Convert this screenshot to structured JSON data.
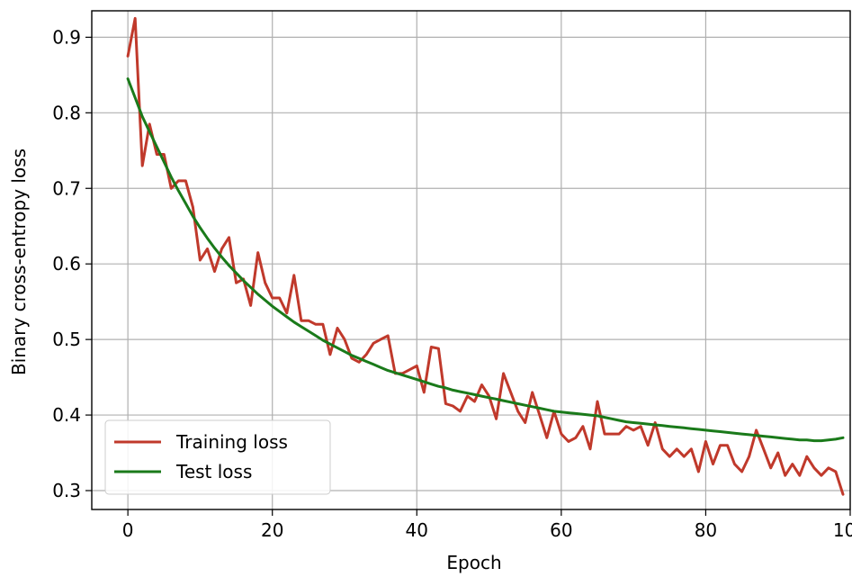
{
  "chart_data": {
    "type": "line",
    "title": "",
    "xlabel": "Epoch",
    "ylabel": "Binary cross-entropy loss",
    "xlim": [
      -5,
      100
    ],
    "ylim": [
      0.275,
      0.935
    ],
    "xticks": [
      0,
      20,
      40,
      60,
      80,
      100
    ],
    "xtick_labels": [
      "0",
      "20",
      "40",
      "60",
      "80",
      "100"
    ],
    "yticks": [
      0.3,
      0.4,
      0.5,
      0.6,
      0.7,
      0.8,
      0.9
    ],
    "ytick_labels": [
      "0.3",
      "0.4",
      "0.5",
      "0.6",
      "0.7",
      "0.8",
      "0.9"
    ],
    "grid": true,
    "legend_position": "lower-left",
    "x": [
      0,
      1,
      2,
      3,
      4,
      5,
      6,
      7,
      8,
      9,
      10,
      11,
      12,
      13,
      14,
      15,
      16,
      17,
      18,
      19,
      20,
      21,
      22,
      23,
      24,
      25,
      26,
      27,
      28,
      29,
      30,
      31,
      32,
      33,
      34,
      35,
      36,
      37,
      38,
      39,
      40,
      41,
      42,
      43,
      44,
      45,
      46,
      47,
      48,
      49,
      50,
      51,
      52,
      53,
      54,
      55,
      56,
      57,
      58,
      59,
      60,
      61,
      62,
      63,
      64,
      65,
      66,
      67,
      68,
      69,
      70,
      71,
      72,
      73,
      74,
      75,
      76,
      77,
      78,
      79,
      80,
      81,
      82,
      83,
      84,
      85,
      86,
      87,
      88,
      89,
      90,
      91,
      92,
      93,
      94,
      95,
      96,
      97,
      98,
      99
    ],
    "series": [
      {
        "name": "Training loss",
        "color": "#c0392b",
        "values": [
          0.875,
          0.925,
          0.73,
          0.785,
          0.745,
          0.745,
          0.7,
          0.71,
          0.71,
          0.675,
          0.605,
          0.62,
          0.59,
          0.62,
          0.635,
          0.575,
          0.58,
          0.545,
          0.615,
          0.575,
          0.555,
          0.555,
          0.535,
          0.585,
          0.525,
          0.525,
          0.52,
          0.52,
          0.48,
          0.515,
          0.5,
          0.475,
          0.47,
          0.48,
          0.495,
          0.5,
          0.505,
          0.455,
          0.455,
          0.46,
          0.465,
          0.43,
          0.49,
          0.488,
          0.415,
          0.412,
          0.405,
          0.425,
          0.418,
          0.44,
          0.425,
          0.395,
          0.455,
          0.43,
          0.405,
          0.39,
          0.43,
          0.4,
          0.37,
          0.405,
          0.375,
          0.365,
          0.37,
          0.385,
          0.355,
          0.418,
          0.375,
          0.375,
          0.375,
          0.385,
          0.38,
          0.385,
          0.36,
          0.39,
          0.355,
          0.345,
          0.355,
          0.345,
          0.355,
          0.325,
          0.365,
          0.335,
          0.36,
          0.36,
          0.335,
          0.325,
          0.345,
          0.38,
          0.355,
          0.33,
          0.35,
          0.32,
          0.335,
          0.32,
          0.345,
          0.33,
          0.32,
          0.33,
          0.325,
          0.295
        ]
      },
      {
        "name": "Test loss",
        "color": "#1a7a1a",
        "values": [
          0.845,
          0.82,
          0.795,
          0.775,
          0.755,
          0.735,
          0.715,
          0.697,
          0.68,
          0.663,
          0.648,
          0.634,
          0.621,
          0.609,
          0.598,
          0.588,
          0.578,
          0.569,
          0.56,
          0.552,
          0.544,
          0.537,
          0.53,
          0.523,
          0.517,
          0.511,
          0.505,
          0.499,
          0.494,
          0.489,
          0.484,
          0.479,
          0.475,
          0.471,
          0.467,
          0.463,
          0.459,
          0.456,
          0.453,
          0.45,
          0.447,
          0.444,
          0.441,
          0.438,
          0.436,
          0.433,
          0.431,
          0.429,
          0.427,
          0.425,
          0.423,
          0.421,
          0.419,
          0.417,
          0.415,
          0.413,
          0.411,
          0.409,
          0.407,
          0.405,
          0.404,
          0.403,
          0.402,
          0.401,
          0.4,
          0.399,
          0.397,
          0.395,
          0.393,
          0.391,
          0.39,
          0.389,
          0.388,
          0.387,
          0.386,
          0.385,
          0.384,
          0.383,
          0.382,
          0.381,
          0.38,
          0.379,
          0.378,
          0.377,
          0.376,
          0.375,
          0.374,
          0.373,
          0.372,
          0.371,
          0.37,
          0.369,
          0.368,
          0.367,
          0.367,
          0.366,
          0.366,
          0.367,
          0.368,
          0.37
        ]
      }
    ]
  }
}
